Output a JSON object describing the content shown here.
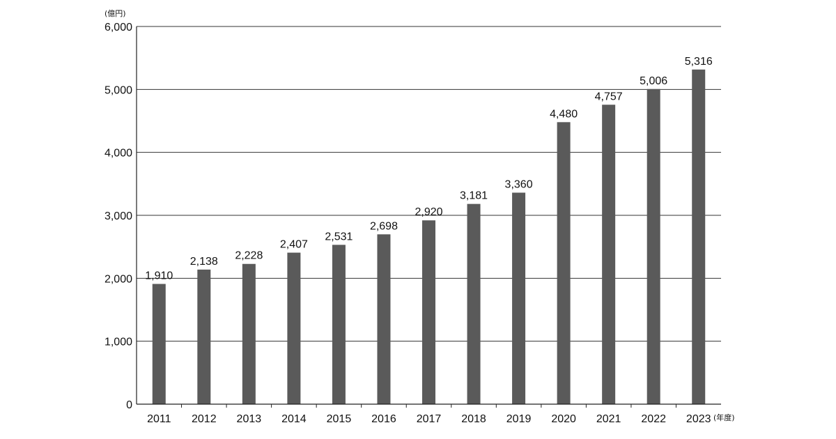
{
  "chart_data": {
    "type": "bar",
    "title": "",
    "xlabel": "(年度)",
    "ylabel": "(億円)",
    "categories": [
      "2011",
      "2012",
      "2013",
      "2014",
      "2015",
      "2016",
      "2017",
      "2018",
      "2019",
      "2020",
      "2021",
      "2022",
      "2023"
    ],
    "values": [
      1910,
      2138,
      2228,
      2407,
      2531,
      2698,
      2920,
      3181,
      3360,
      4480,
      4757,
      5006,
      5316
    ],
    "data_labels": [
      "1,910",
      "2,138",
      "2,228",
      "2,407",
      "2,531",
      "2,698",
      "2,920",
      "3,181",
      "3,360",
      "4,480",
      "4,757",
      "5,006",
      "5,316"
    ],
    "ylim": [
      0,
      6000
    ],
    "yticks": [
      0,
      1000,
      2000,
      3000,
      4000,
      5000,
      6000
    ],
    "ytick_labels": [
      "0",
      "1,000",
      "2,000",
      "3,000",
      "4,000",
      "5,000",
      "6,000"
    ],
    "grid": true,
    "bar_color": "#5a5a5a",
    "legend": "none"
  }
}
